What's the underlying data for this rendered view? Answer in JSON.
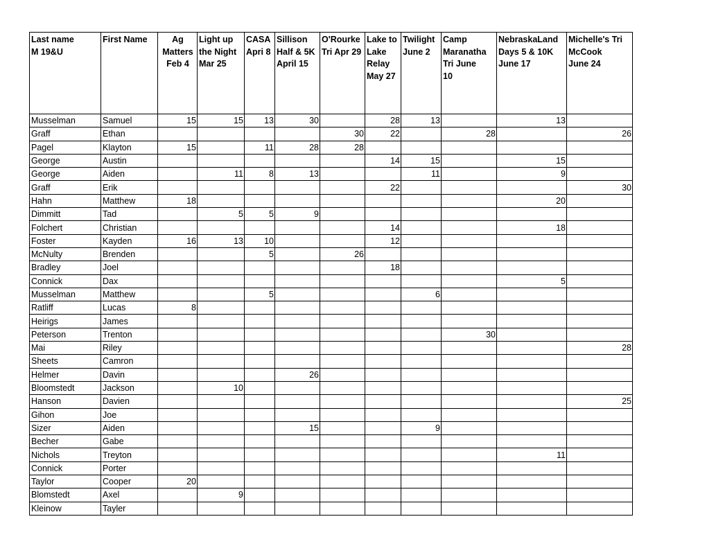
{
  "headers": [
    "Last name\nM 19&U",
    "First Name",
    "Ag\nMatters\nFeb 4",
    "Light up\nthe Night\nMar 25",
    "CASA\nApri 8",
    "Sillison\nHalf & 5K\nApril 15",
    "O'Rourke\nTri Apr 29",
    "Lake to\nLake\nRelay\nMay 27",
    "Twilight\nJune 2",
    "Camp\nMaranatha\nTri          June\n10",
    "NebraskaLand\nDays 5 & 10K\nJune 17",
    "Michelle's Tri\nMcCook\nJune 24"
  ],
  "rows": [
    [
      "Musselman",
      "Samuel",
      "15",
      "15",
      "13",
      "30",
      "",
      "28",
      "13",
      "",
      "13",
      ""
    ],
    [
      "Graff",
      "Ethan",
      "",
      "",
      "",
      "",
      "30",
      "22",
      "",
      "28",
      "",
      "26"
    ],
    [
      "Pagel",
      "Klayton",
      "15",
      "",
      "11",
      "28",
      "28",
      "",
      "",
      "",
      "",
      ""
    ],
    [
      "George",
      "Austin",
      "",
      "",
      "",
      "",
      "",
      "14",
      "15",
      "",
      "15",
      ""
    ],
    [
      "George",
      "Aiden",
      "",
      "11",
      "8",
      "13",
      "",
      "",
      "11",
      "",
      "9",
      ""
    ],
    [
      "Graff",
      "Erik",
      "",
      "",
      "",
      "",
      "",
      "22",
      "",
      "",
      "",
      "30"
    ],
    [
      "Hahn",
      "Matthew",
      "18",
      "",
      "",
      "",
      "",
      "",
      "",
      "",
      "20",
      ""
    ],
    [
      "Dimmitt",
      "Tad",
      "",
      "5",
      "5",
      "9",
      "",
      "",
      "",
      "",
      "",
      ""
    ],
    [
      "Folchert",
      "Christian",
      "",
      "",
      "",
      "",
      "",
      "14",
      "",
      "",
      "18",
      ""
    ],
    [
      "Foster",
      "Kayden",
      "16",
      "13",
      "10",
      "",
      "",
      "12",
      "",
      "",
      "",
      ""
    ],
    [
      "McNulty",
      "Brenden",
      "",
      "",
      "5",
      "",
      "26",
      "",
      "",
      "",
      "",
      ""
    ],
    [
      "Bradley",
      "Joel",
      "",
      "",
      "",
      "",
      "",
      "18",
      "",
      "",
      "",
      ""
    ],
    [
      "Connick",
      "Dax",
      "",
      "",
      "",
      "",
      "",
      "",
      "",
      "",
      "5",
      ""
    ],
    [
      "Musselman",
      "Matthew",
      "",
      "",
      "5",
      "",
      "",
      "",
      "6",
      "",
      "",
      ""
    ],
    [
      "Ratliff",
      "Lucas",
      "8",
      "",
      "",
      "",
      "",
      "",
      "",
      "",
      "",
      ""
    ],
    [
      "Heirigs",
      "James",
      "",
      "",
      "",
      "",
      "",
      "",
      "",
      "",
      "",
      ""
    ],
    [
      "Peterson",
      "Trenton",
      "",
      "",
      "",
      "",
      "",
      "",
      "",
      "30",
      "",
      ""
    ],
    [
      "Mai",
      "Riley",
      "",
      "",
      "",
      "",
      "",
      "",
      "",
      "",
      "",
      "28"
    ],
    [
      "Sheets",
      "Camron",
      "",
      "",
      "",
      "",
      "",
      "",
      "",
      "",
      "",
      ""
    ],
    [
      "Helmer",
      "Davin",
      "",
      "",
      "",
      "26",
      "",
      "",
      "",
      "",
      "",
      ""
    ],
    [
      "Bloomstedt",
      "Jackson",
      "",
      "10",
      "",
      "",
      "",
      "",
      "",
      "",
      "",
      ""
    ],
    [
      "Hanson",
      "Davien",
      "",
      "",
      "",
      "",
      "",
      "",
      "",
      "",
      "",
      "25"
    ],
    [
      "Gihon",
      "Joe",
      "",
      "",
      "",
      "",
      "",
      "",
      "",
      "",
      "",
      ""
    ],
    [
      "Sizer",
      "Aiden",
      "",
      "",
      "",
      "15",
      "",
      "",
      "9",
      "",
      "",
      ""
    ],
    [
      "Becher",
      "Gabe",
      "",
      "",
      "",
      "",
      "",
      "",
      "",
      "",
      "",
      ""
    ],
    [
      "Nichols",
      "Treyton",
      "",
      "",
      "",
      "",
      "",
      "",
      "",
      "",
      "11",
      ""
    ],
    [
      "Connick",
      "Porter",
      "",
      "",
      "",
      "",
      "",
      "",
      "",
      "",
      "",
      ""
    ],
    [
      "Taylor",
      "Cooper",
      "20",
      "",
      "",
      "",
      "",
      "",
      "",
      "",
      "",
      ""
    ],
    [
      "Blomstedt",
      "Axel",
      "",
      "9",
      "",
      "",
      "",
      "",
      "",
      "",
      "",
      ""
    ],
    [
      "Kleinow",
      "Tayler",
      "",
      "",
      "",
      "",
      "",
      "",
      "",
      "",
      "",
      ""
    ]
  ]
}
